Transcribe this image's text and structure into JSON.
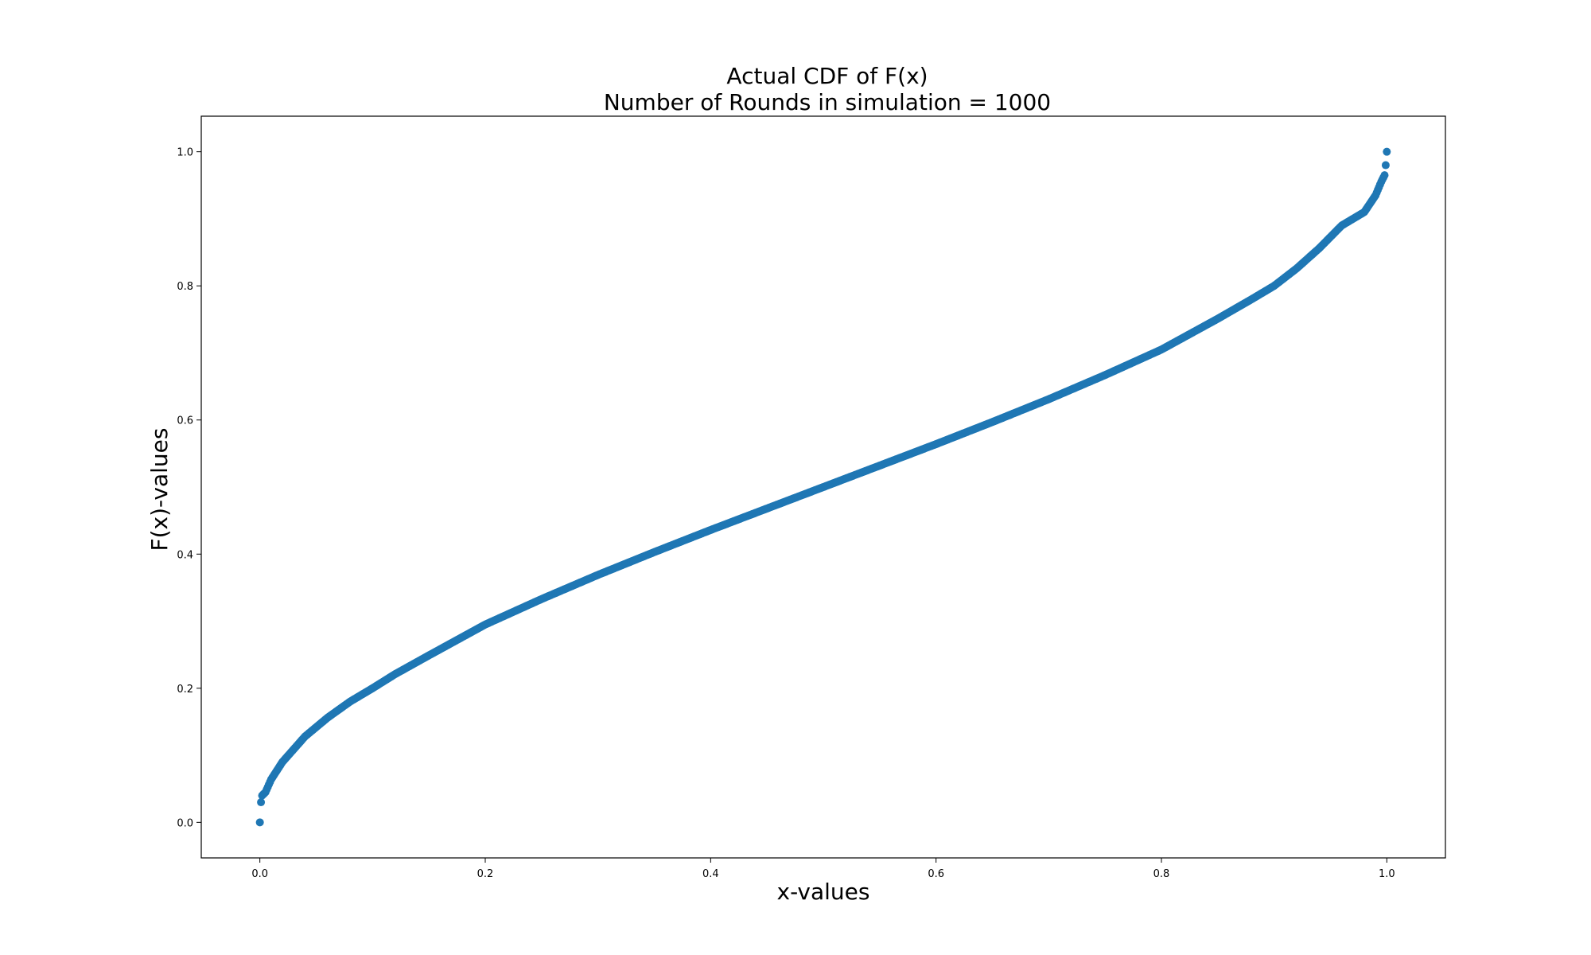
{
  "chart_data": {
    "type": "scatter",
    "title": "Actual CDF of F(x)",
    "subtitle": "Number of Rounds in simulation = 1000",
    "xlabel": "x-values",
    "ylabel": "F(x)-values",
    "xlim": [
      -0.052,
      1.052
    ],
    "ylim": [
      -0.053,
      1.053
    ],
    "xticks": [
      0.0,
      0.2,
      0.4,
      0.6,
      0.8,
      1.0
    ],
    "yticks": [
      0.0,
      0.2,
      0.4,
      0.6,
      0.8,
      1.0
    ],
    "xtick_labels": [
      "0.0",
      "0.2",
      "0.4",
      "0.6",
      "0.8",
      "1.0"
    ],
    "ytick_labels": [
      "0.0",
      "0.2",
      "0.4",
      "0.6",
      "0.8",
      "1.0"
    ],
    "grid": false,
    "marker_color": "#1f77b4",
    "points_count": 1000,
    "x": [
      0.0,
      0.0005,
      0.001,
      0.002,
      0.005,
      0.01,
      0.02,
      0.04,
      0.06,
      0.08,
      0.1,
      0.12,
      0.15,
      0.2,
      0.25,
      0.3,
      0.35,
      0.4,
      0.45,
      0.5,
      0.55,
      0.6,
      0.65,
      0.7,
      0.75,
      0.8,
      0.85,
      0.88,
      0.9,
      0.92,
      0.94,
      0.96,
      0.98,
      0.99,
      0.995,
      0.998,
      0.999,
      1.0
    ],
    "y": [
      0.0,
      0.02,
      0.03,
      0.04,
      0.045,
      0.064,
      0.09,
      0.128,
      0.156,
      0.18,
      0.2,
      0.221,
      0.249,
      0.295,
      0.333,
      0.369,
      0.403,
      0.436,
      0.468,
      0.5,
      0.532,
      0.564,
      0.597,
      0.631,
      0.667,
      0.705,
      0.751,
      0.78,
      0.8,
      0.826,
      0.856,
      0.89,
      0.91,
      0.935,
      0.955,
      0.965,
      0.98,
      1.0
    ]
  }
}
